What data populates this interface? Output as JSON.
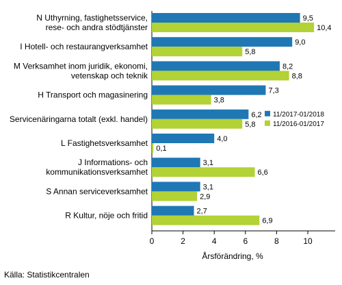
{
  "chart_data": {
    "type": "bar",
    "orientation": "horizontal",
    "categories": [
      [
        "N Uthyrning, fastighetsservice,",
        "rese- och andra stödtjänster"
      ],
      [
        "I Hotell- och restaurangverksamhet"
      ],
      [
        "M Verksamhet inom juridik, ekonomi,",
        "vetenskap och teknik"
      ],
      [
        "H Transport och magasinering"
      ],
      [
        "Servicenäringarna totalt (exkl. handel)"
      ],
      [
        "L Fastighetsverksamhet"
      ],
      [
        "J Informations- och",
        "kommunikationsverksamhet"
      ],
      [
        "S Annan serviceverksamhet"
      ],
      [
        "R Kultur, nöje och fritid"
      ]
    ],
    "series": [
      {
        "name": "11/2017-01/2018",
        "color": "#1f78b4",
        "values": [
          9.5,
          9.0,
          8.2,
          7.3,
          6.2,
          4.0,
          3.1,
          3.1,
          2.7
        ],
        "labels": [
          "9,5",
          "9,0",
          "8,2",
          "7,3",
          "6,2",
          "4,0",
          "3,1",
          "3,1",
          "2,7"
        ]
      },
      {
        "name": "11/2016-01/2017",
        "color": "#b2d235",
        "values": [
          10.4,
          5.8,
          8.8,
          3.8,
          5.8,
          0.1,
          6.6,
          2.9,
          6.9
        ],
        "labels": [
          "10,4",
          "5,8",
          "8,8",
          "3,8",
          "5,8",
          "0,1",
          "6,6",
          "2,9",
          "6,9"
        ]
      }
    ],
    "xlabel": "Årsförändring, %",
    "ylabel": "",
    "xlim": [
      0,
      12
    ],
    "xticks": [
      0,
      2,
      4,
      6,
      8,
      10
    ],
    "xtick_labels": [
      "0",
      "2",
      "4",
      "6",
      "8",
      "10"
    ],
    "legend_position": "right, beside Servicenäringarna totalt",
    "grid": false
  },
  "source_text": "Källa: Statistikcentralen"
}
